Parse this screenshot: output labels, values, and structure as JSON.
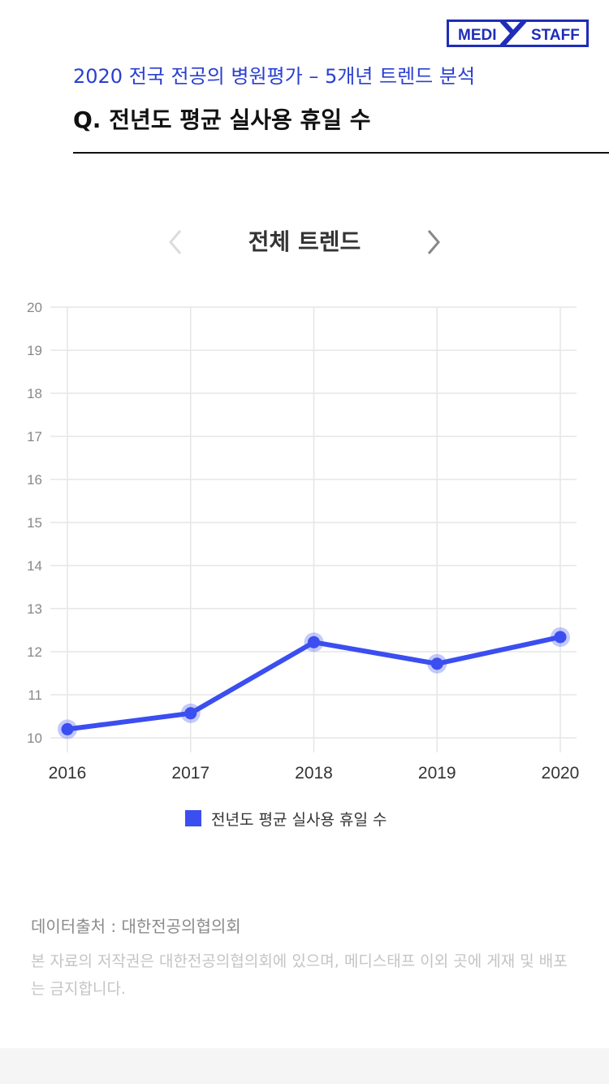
{
  "brand": {
    "left": "MEDI",
    "right": "STAFF",
    "color": "#1f2db8"
  },
  "header": {
    "subtitle": "2020 전국 전공의 병원평가 – 5개년 트렌드 분석",
    "title": "Q. 전년도 평균 실사용 휴일 수"
  },
  "nav": {
    "prev_icon": "chevron-left-icon",
    "next_icon": "chevron-right-icon"
  },
  "chart_data": {
    "type": "line",
    "title": "전체 트렌드",
    "x": [
      "2016",
      "2017",
      "2018",
      "2019",
      "2020"
    ],
    "series": [
      {
        "name": "전년도 평균 실사용 휴일 수",
        "values": [
          10.2,
          10.57,
          12.22,
          11.72,
          12.34
        ],
        "color": "#3b4ef0"
      }
    ],
    "ylim": [
      10,
      20
    ],
    "yticks": [
      10,
      11,
      12,
      13,
      14,
      15,
      16,
      17,
      18,
      19,
      20
    ],
    "grid": true,
    "legend": "bottom"
  },
  "footer": {
    "source": "데이터출처 : 대한전공의협의회",
    "copyright": "본 자료의 저작권은 대한전공의협의회에 있으며, 메디스태프 이외 곳에 게재 및 배포는 금지합니다."
  }
}
